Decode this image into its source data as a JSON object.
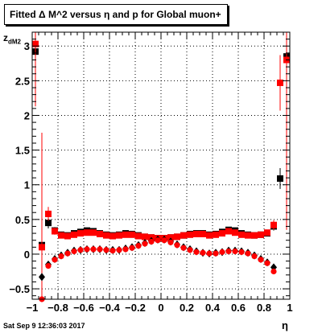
{
  "title": "Fitted Δ M^2 versus η and p for Global muon+",
  "ylabel": "z",
  "ylabel_sub": "dM2",
  "xlabel": "η",
  "timestamp": "Sat Sep  9 12:36:03 2017",
  "chart_data": {
    "type": "scatter",
    "xlim": [
      -1,
      1
    ],
    "ylim": [
      -0.65,
      3.2
    ],
    "xticks": [
      -1,
      -0.8,
      -0.6,
      -0.4,
      -0.2,
      0,
      0.2,
      0.4,
      0.6,
      0.8,
      1
    ],
    "xtick_labels": [
      "−1",
      "−0.8",
      "−0.6",
      "−0.4",
      "−0.2",
      "0",
      "0.2",
      "0.4",
      "0.6",
      "0.8",
      "1"
    ],
    "yticks": [
      -0.5,
      0,
      0.5,
      1,
      1.5,
      2,
      2.5,
      3
    ],
    "ytick_labels": [
      "−0.5",
      "0",
      "0.5",
      "1",
      "1.5",
      "2",
      "2.5",
      "3"
    ],
    "grid": true,
    "series": [
      {
        "marker": "square",
        "color": "#000000",
        "x": [
          -0.975,
          -0.925,
          -0.875,
          -0.825,
          -0.775,
          -0.725,
          -0.675,
          -0.625,
          -0.575,
          -0.525,
          -0.475,
          -0.425,
          -0.375,
          -0.325,
          -0.275,
          -0.225,
          -0.175,
          -0.125,
          -0.075,
          -0.025,
          0.025,
          0.075,
          0.125,
          0.175,
          0.225,
          0.275,
          0.325,
          0.375,
          0.425,
          0.475,
          0.525,
          0.575,
          0.625,
          0.675,
          0.725,
          0.775,
          0.825,
          0.875,
          0.925,
          0.975
        ],
        "y": [
          2.92,
          0.13,
          0.45,
          0.34,
          0.28,
          0.27,
          0.3,
          0.32,
          0.34,
          0.33,
          0.3,
          0.28,
          0.27,
          0.28,
          0.3,
          0.29,
          0.27,
          0.25,
          0.24,
          0.23,
          0.23,
          0.24,
          0.25,
          0.27,
          0.29,
          0.3,
          0.3,
          0.28,
          0.29,
          0.32,
          0.35,
          0.34,
          0.3,
          0.28,
          0.27,
          0.28,
          0.3,
          0.4,
          1.09,
          2.85
        ],
        "yerr": [
          0.4,
          0.1,
          0.08,
          0.05,
          0.03,
          0.02,
          0.02,
          0.02,
          0.02,
          0.02,
          0.02,
          0.02,
          0.02,
          0.02,
          0.02,
          0.02,
          0.02,
          0.02,
          0.02,
          0.02,
          0.02,
          0.02,
          0.02,
          0.02,
          0.02,
          0.02,
          0.02,
          0.02,
          0.02,
          0.02,
          0.02,
          0.02,
          0.02,
          0.02,
          0.02,
          0.03,
          0.04,
          0.06,
          0.15,
          0.4
        ]
      },
      {
        "marker": "square",
        "color": "#ff0000",
        "x": [
          -0.975,
          -0.925,
          -0.875,
          -0.825,
          -0.775,
          -0.725,
          -0.675,
          -0.625,
          -0.575,
          -0.525,
          -0.475,
          -0.425,
          -0.375,
          -0.325,
          -0.275,
          -0.225,
          -0.175,
          -0.125,
          -0.075,
          -0.025,
          0.025,
          0.075,
          0.125,
          0.175,
          0.225,
          0.275,
          0.325,
          0.375,
          0.425,
          0.475,
          0.525,
          0.575,
          0.625,
          0.675,
          0.725,
          0.775,
          0.825,
          0.875,
          0.925,
          0.975
        ],
        "y": [
          3.03,
          0.1,
          0.58,
          0.33,
          0.27,
          0.26,
          0.28,
          0.3,
          0.31,
          0.31,
          0.29,
          0.27,
          0.26,
          0.27,
          0.28,
          0.28,
          0.26,
          0.25,
          0.24,
          0.23,
          0.23,
          0.24,
          0.25,
          0.27,
          0.28,
          0.29,
          0.29,
          0.27,
          0.28,
          0.3,
          0.33,
          0.31,
          0.28,
          0.27,
          0.27,
          0.28,
          0.31,
          0.42,
          2.47,
          2.8
        ],
        "yerr": [
          0.9,
          1.65,
          0.1,
          0.05,
          0.03,
          0.02,
          0.02,
          0.02,
          0.02,
          0.02,
          0.02,
          0.02,
          0.02,
          0.02,
          0.02,
          0.02,
          0.02,
          0.02,
          0.02,
          0.02,
          0.02,
          0.02,
          0.02,
          0.02,
          0.02,
          0.02,
          0.02,
          0.02,
          0.02,
          0.02,
          0.02,
          0.02,
          0.02,
          0.02,
          0.02,
          0.03,
          0.04,
          0.07,
          0.4,
          2.45
        ]
      },
      {
        "marker": "diamond",
        "color": "#000000",
        "x": [
          -0.925,
          -0.875,
          -0.825,
          -0.775,
          -0.725,
          -0.675,
          -0.625,
          -0.575,
          -0.525,
          -0.475,
          -0.425,
          -0.375,
          -0.325,
          -0.275,
          -0.225,
          -0.175,
          -0.125,
          -0.075,
          -0.025,
          0.025,
          0.075,
          0.125,
          0.175,
          0.225,
          0.275,
          0.325,
          0.375,
          0.425,
          0.475,
          0.525,
          0.575,
          0.625,
          0.675,
          0.725,
          0.775,
          0.825,
          0.875
        ],
        "y": [
          -0.33,
          -0.15,
          -0.07,
          -0.02,
          0.02,
          0.05,
          0.06,
          0.07,
          0.07,
          0.07,
          0.06,
          0.06,
          0.06,
          0.08,
          0.1,
          0.13,
          0.16,
          0.19,
          0.21,
          0.21,
          0.18,
          0.14,
          0.1,
          0.07,
          0.04,
          0.02,
          0.01,
          0.02,
          0.03,
          0.05,
          0.05,
          0.04,
          0.02,
          -0.02,
          -0.07,
          -0.12,
          -0.19
        ],
        "yerr": [
          0.05,
          0.03,
          0.02,
          0.02,
          0.02,
          0.02,
          0.02,
          0.02,
          0.02,
          0.02,
          0.02,
          0.02,
          0.02,
          0.02,
          0.02,
          0.02,
          0.02,
          0.02,
          0.02,
          0.02,
          0.02,
          0.02,
          0.02,
          0.02,
          0.02,
          0.02,
          0.02,
          0.02,
          0.02,
          0.02,
          0.02,
          0.02,
          0.02,
          0.02,
          0.02,
          0.02,
          0.04
        ]
      },
      {
        "marker": "circle",
        "color": "#ff0000",
        "x": [
          -0.925,
          -0.875,
          -0.825,
          -0.775,
          -0.725,
          -0.675,
          -0.625,
          -0.575,
          -0.525,
          -0.475,
          -0.425,
          -0.375,
          -0.325,
          -0.275,
          -0.225,
          -0.175,
          -0.125,
          -0.075,
          -0.025,
          0.025,
          0.075,
          0.125,
          0.175,
          0.225,
          0.275,
          0.325,
          0.375,
          0.425,
          0.475,
          0.525,
          0.575,
          0.625,
          0.675,
          0.725,
          0.775,
          0.825,
          0.875
        ],
        "y": [
          -0.65,
          -0.17,
          -0.08,
          -0.03,
          0.01,
          0.04,
          0.06,
          0.07,
          0.07,
          0.07,
          0.06,
          0.05,
          0.06,
          0.07,
          0.09,
          0.12,
          0.15,
          0.18,
          0.2,
          0.2,
          0.17,
          0.13,
          0.09,
          0.06,
          0.03,
          0.02,
          0.01,
          0.01,
          0.03,
          0.04,
          0.04,
          0.03,
          0.01,
          -0.03,
          -0.08,
          -0.13,
          -0.25
        ],
        "yerr": [
          0.06,
          0.03,
          0.02,
          0.02,
          0.02,
          0.02,
          0.02,
          0.02,
          0.02,
          0.02,
          0.02,
          0.02,
          0.02,
          0.02,
          0.02,
          0.02,
          0.02,
          0.02,
          0.02,
          0.02,
          0.02,
          0.02,
          0.02,
          0.02,
          0.02,
          0.02,
          0.02,
          0.02,
          0.02,
          0.02,
          0.02,
          0.02,
          0.02,
          0.02,
          0.02,
          0.02,
          0.04
        ]
      }
    ]
  }
}
